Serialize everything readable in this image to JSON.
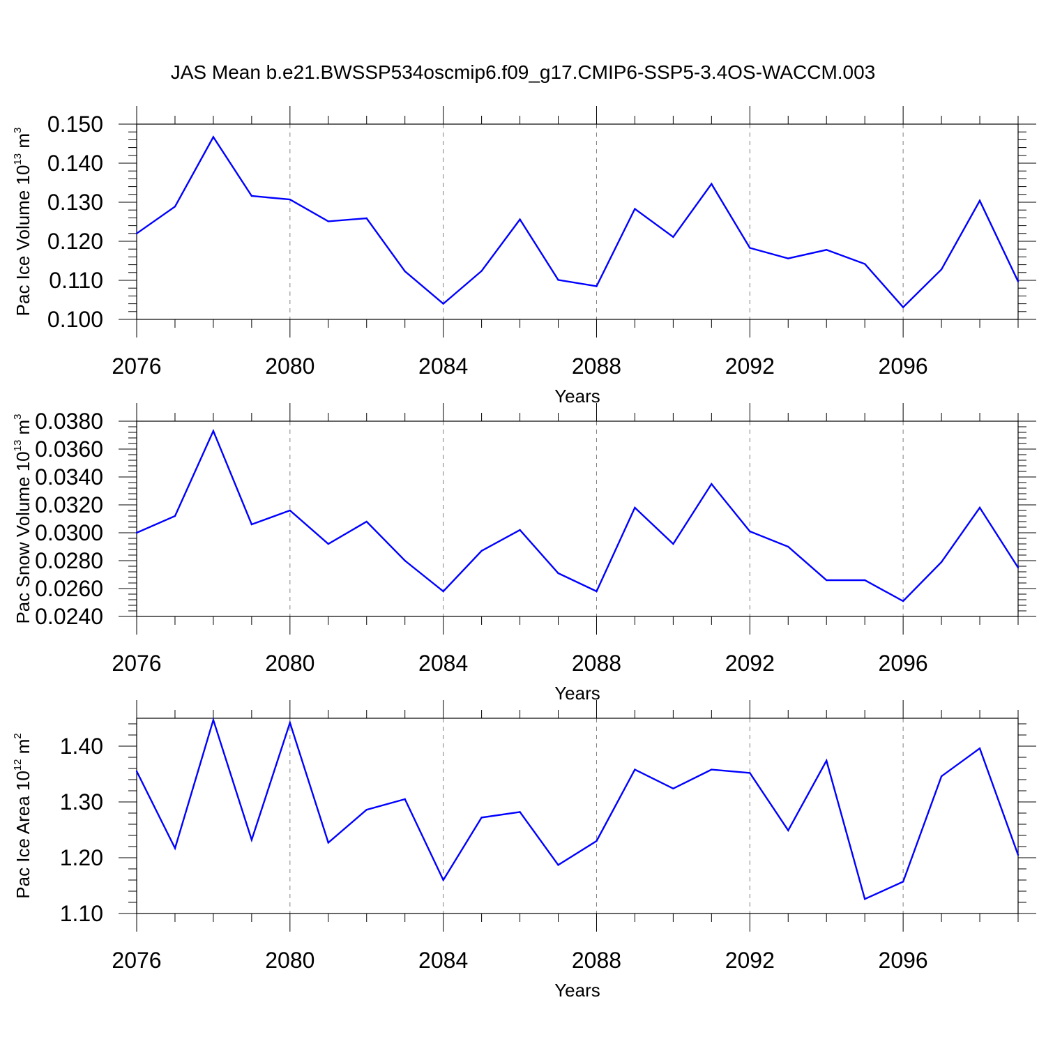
{
  "title": "JAS Mean b.e21.BWSSP534oscmip6.f09_g17.CMIP6-SSP5-3.4OS-WACCM.003",
  "colors": {
    "line": "#0000ff",
    "axis": "#000000",
    "grid": "#808080"
  },
  "chart_data": [
    {
      "type": "line",
      "ylabel": {
        "base": "Pac Ice Volume 10",
        "exp": "13",
        "unit": " m",
        "unit_exp": "3"
      },
      "xlabel": "Years",
      "xlim": [
        2076,
        2099
      ],
      "ylim": [
        0.1,
        0.15
      ],
      "yticks": [
        0.1,
        0.11,
        0.12,
        0.13,
        0.14,
        0.15
      ],
      "ytick_labels": [
        "0.100",
        "0.110",
        "0.120",
        "0.130",
        "0.140",
        "0.150"
      ],
      "xticks": [
        2076,
        2080,
        2084,
        2088,
        2092,
        2096
      ],
      "xtick_labels": [
        "2076",
        "2080",
        "2084",
        "2088",
        "2092",
        "2096"
      ],
      "x": [
        2076,
        2077,
        2078,
        2079,
        2080,
        2081,
        2082,
        2083,
        2084,
        2085,
        2086,
        2087,
        2088,
        2089,
        2090,
        2091,
        2092,
        2093,
        2094,
        2095,
        2096,
        2097,
        2098,
        2099
      ],
      "values": [
        0.122,
        0.1289,
        0.1467,
        0.1316,
        0.1307,
        0.1251,
        0.1259,
        0.1123,
        0.104,
        0.1124,
        0.1256,
        0.1101,
        0.1085,
        0.1283,
        0.1211,
        0.1347,
        0.1183,
        0.1156,
        0.1178,
        0.1142,
        0.1031,
        0.1128,
        0.1304,
        0.1097
      ]
    },
    {
      "type": "line",
      "ylabel": {
        "base": "Pac Snow Volume 10",
        "exp": "13",
        "unit": " m",
        "unit_exp": "3"
      },
      "xlabel": "Years",
      "xlim": [
        2076,
        2099
      ],
      "ylim": [
        0.024,
        0.038
      ],
      "yticks": [
        0.024,
        0.026,
        0.028,
        0.03,
        0.032,
        0.034,
        0.036,
        0.038
      ],
      "ytick_labels": [
        "0.0240",
        "0.0260",
        "0.0280",
        "0.0300",
        "0.0320",
        "0.0340",
        "0.0360",
        "0.0380"
      ],
      "xticks": [
        2076,
        2080,
        2084,
        2088,
        2092,
        2096
      ],
      "xtick_labels": [
        "2076",
        "2080",
        "2084",
        "2088",
        "2092",
        "2096"
      ],
      "x": [
        2076,
        2077,
        2078,
        2079,
        2080,
        2081,
        2082,
        2083,
        2084,
        2085,
        2086,
        2087,
        2088,
        2089,
        2090,
        2091,
        2092,
        2093,
        2094,
        2095,
        2096,
        2097,
        2098,
        2099
      ],
      "values": [
        0.03,
        0.0312,
        0.0373,
        0.0306,
        0.0316,
        0.0292,
        0.0308,
        0.028,
        0.0258,
        0.0287,
        0.0302,
        0.0271,
        0.0258,
        0.0318,
        0.0292,
        0.0335,
        0.0301,
        0.029,
        0.0266,
        0.0266,
        0.0251,
        0.0279,
        0.0318,
        0.0275
      ]
    },
    {
      "type": "line",
      "ylabel": {
        "base": "Pac Ice Area 10",
        "exp": "12",
        "unit": " m",
        "unit_exp": "2"
      },
      "xlabel": "Years",
      "xlim": [
        2076,
        2099
      ],
      "ylim": [
        1.1,
        1.45
      ],
      "yticks": [
        1.1,
        1.2,
        1.3,
        1.4
      ],
      "ytick_labels": [
        "1.10",
        "1.20",
        "1.30",
        "1.40"
      ],
      "xticks": [
        2076,
        2080,
        2084,
        2088,
        2092,
        2096
      ],
      "xtick_labels": [
        "2076",
        "2080",
        "2084",
        "2088",
        "2092",
        "2096"
      ],
      "x": [
        2076,
        2077,
        2078,
        2079,
        2080,
        2081,
        2082,
        2083,
        2084,
        2085,
        2086,
        2087,
        2088,
        2089,
        2090,
        2091,
        2092,
        2093,
        2094,
        2095,
        2096,
        2097,
        2098,
        2099
      ],
      "values": [
        1.355,
        1.217,
        1.447,
        1.232,
        1.442,
        1.227,
        1.286,
        1.305,
        1.16,
        1.272,
        1.282,
        1.187,
        1.23,
        1.358,
        1.324,
        1.358,
        1.352,
        1.249,
        1.374,
        1.126,
        1.157,
        1.346,
        1.396,
        1.205
      ]
    }
  ]
}
